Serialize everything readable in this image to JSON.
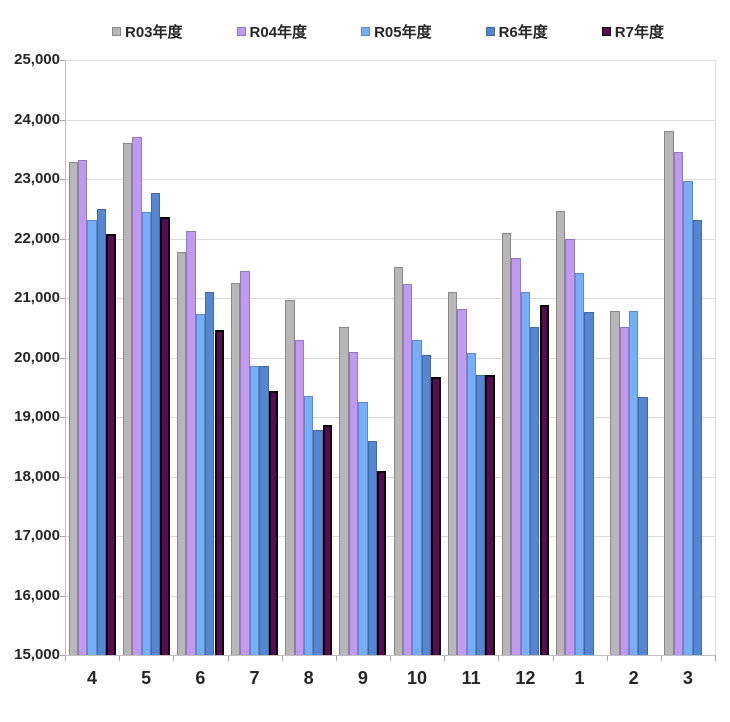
{
  "chart_data": {
    "type": "bar",
    "title": "",
    "xlabel": "",
    "ylabel": "",
    "grid": true,
    "legend_position": "top",
    "y_axis": {
      "min": 15000,
      "max": 25000,
      "step": 1000,
      "tick_labels": [
        "25,000",
        "24,000",
        "23,000",
        "22,000",
        "21,000",
        "20,000",
        "19,000",
        "18,000",
        "17,000",
        "16,000",
        "15,000"
      ]
    },
    "categories": [
      "4",
      "5",
      "6",
      "7",
      "8",
      "9",
      "10",
      "11",
      "12",
      "1",
      "2",
      "3"
    ],
    "series": [
      {
        "name": "R03年度",
        "color": "#b8b6b9",
        "border_color": "#8a888b",
        "values": [
          23280,
          23600,
          21780,
          21250,
          20960,
          20510,
          21530,
          21110,
          22090,
          22460,
          20790,
          23810
        ]
      },
      {
        "name": "R04年度",
        "color": "#c09af0",
        "border_color": "#9578bb",
        "values": [
          23320,
          23710,
          22130,
          21450,
          20300,
          20090,
          21240,
          20810,
          21680,
          21990,
          20510,
          23460
        ]
      },
      {
        "name": "R05年度",
        "color": "#76aef8",
        "border_color": "#5d8ac4",
        "values": [
          22310,
          22440,
          20730,
          19850,
          19360,
          19250,
          20290,
          20080,
          21100,
          21420,
          20790,
          22960
        ]
      },
      {
        "name": "R6年度",
        "color": "#5586d1",
        "border_color": "#44699f",
        "values": [
          22500,
          22770,
          21110,
          19860,
          18780,
          18590,
          20050,
          19700,
          20510,
          20770,
          19340,
          22310
        ]
      },
      {
        "name": "R7年度",
        "color": "#5c0a54",
        "border_color": "#000000",
        "values": [
          22070,
          22360,
          20470,
          19430,
          18870,
          18090,
          19680,
          19710,
          20880,
          null,
          null,
          null
        ]
      }
    ]
  }
}
